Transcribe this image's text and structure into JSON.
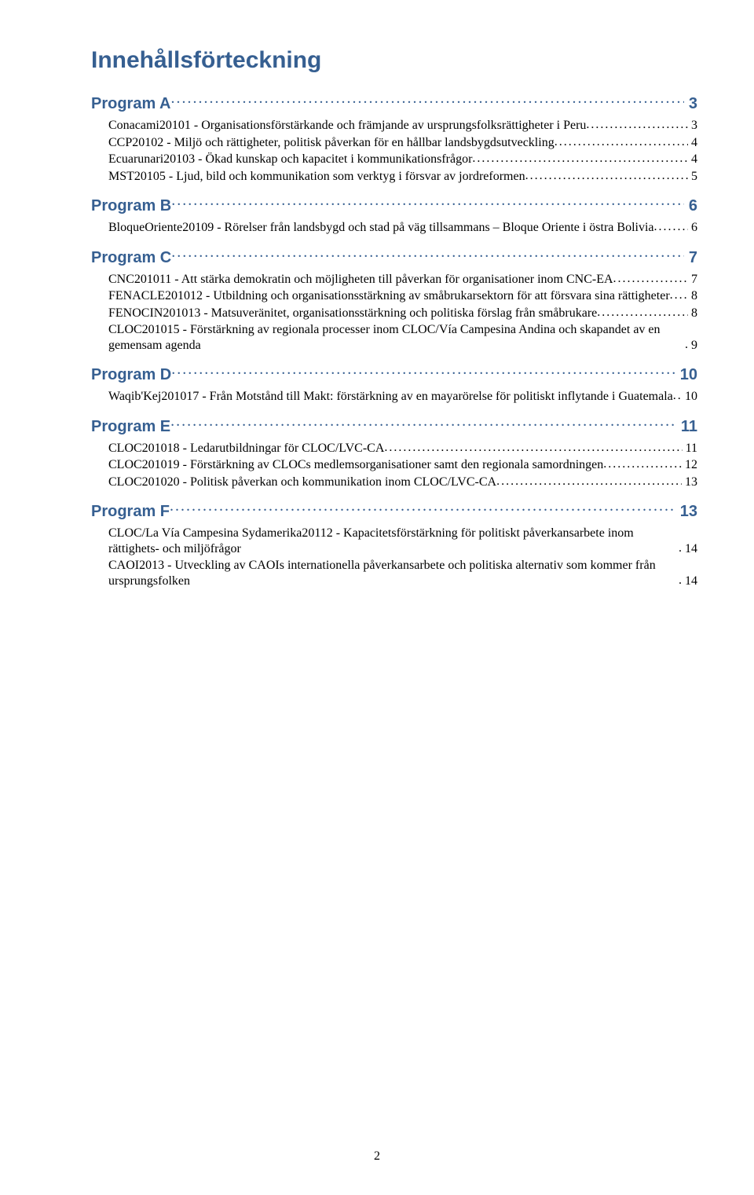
{
  "title": "Innehållsförteckning",
  "colors": {
    "heading": "#365f91",
    "body": "#000000",
    "background": "#ffffff"
  },
  "typography": {
    "title_font": "Trebuchet MS",
    "title_size_pt": 22,
    "program_font": "Trebuchet MS",
    "program_size_pt": 15,
    "entry_font": "Times New Roman",
    "entry_size_pt": 12
  },
  "page_number": "2",
  "programs": [
    {
      "label": "Program A",
      "page": "3",
      "entries": [
        {
          "text": "Conacami20101 - Organisationsförstärkande och främjande av ursprungsfolksrättigheter i Peru",
          "page": "3"
        },
        {
          "text": "CCP20102 - Miljö och rättigheter, politisk påverkan för en hållbar landsbygdsutveckling",
          "page": "4"
        },
        {
          "text": "Ecuarunari20103 - Ökad kunskap och kapacitet i kommunikationsfrågor",
          "page": "4"
        },
        {
          "text": "MST20105 - Ljud, bild och kommunikation som verktyg i försvar av jordreformen",
          "page": "5"
        }
      ]
    },
    {
      "label": "Program B",
      "page": "6",
      "entries": [
        {
          "text": "BloqueOriente20109 - Rörelser från landsbygd och stad på väg tillsammans – Bloque Oriente i östra Bolivia",
          "page": "6"
        }
      ]
    },
    {
      "label": "Program C",
      "page": "7",
      "entries": [
        {
          "text": "CNC201011 - Att stärka demokratin och möjligheten till påverkan för organisationer inom CNC-EA",
          "page": "7"
        },
        {
          "text": "FENACLE201012 - Utbildning och organisationsstärkning av småbrukarsektorn för att försvara sina rättigheter",
          "page": "8"
        },
        {
          "text": "FENOCIN201013 - Matsuveränitet, organisationsstärkning och politiska förslag från småbrukare",
          "page": "8",
          "tight": true
        },
        {
          "text": "CLOC201015 - Förstärkning av regionala processer inom CLOC/Vía Campesina Andina och skapandet av en gemensam agenda",
          "page": "9"
        }
      ]
    },
    {
      "label": "Program D",
      "page": "10",
      "entries": [
        {
          "text": "Waqib'Kej201017 - Från Motstånd till Makt: förstärkning av en mayarörelse för politiskt inflytande i Guatemala",
          "page": "10"
        }
      ]
    },
    {
      "label": "Program E",
      "page": "11",
      "entries": [
        {
          "text": "CLOC201018 - Ledarutbildningar för CLOC/LVC-CA",
          "page": "11"
        },
        {
          "text": "CLOC201019 - Förstärkning av CLOCs medlemsorganisationer samt den regionala samordningen",
          "page": "12",
          "breakbefore": true
        },
        {
          "text": "CLOC201020 - Politisk påverkan och kommunikation inom CLOC/LVC-CA",
          "page": "13"
        }
      ]
    },
    {
      "label": "Program F",
      "page": "13",
      "entries": [
        {
          "text": "CLOC/La Vía Campesina Sydamerika20112 - Kapacitetsförstärkning för politiskt påverkansarbete inom rättighets- och miljöfrågor",
          "page": "14"
        },
        {
          "text": "CAOI2013 - Utveckling av CAOIs internationella påverkansarbete och politiska alternativ som kommer från ursprungsfolken",
          "page": "14"
        }
      ]
    }
  ]
}
